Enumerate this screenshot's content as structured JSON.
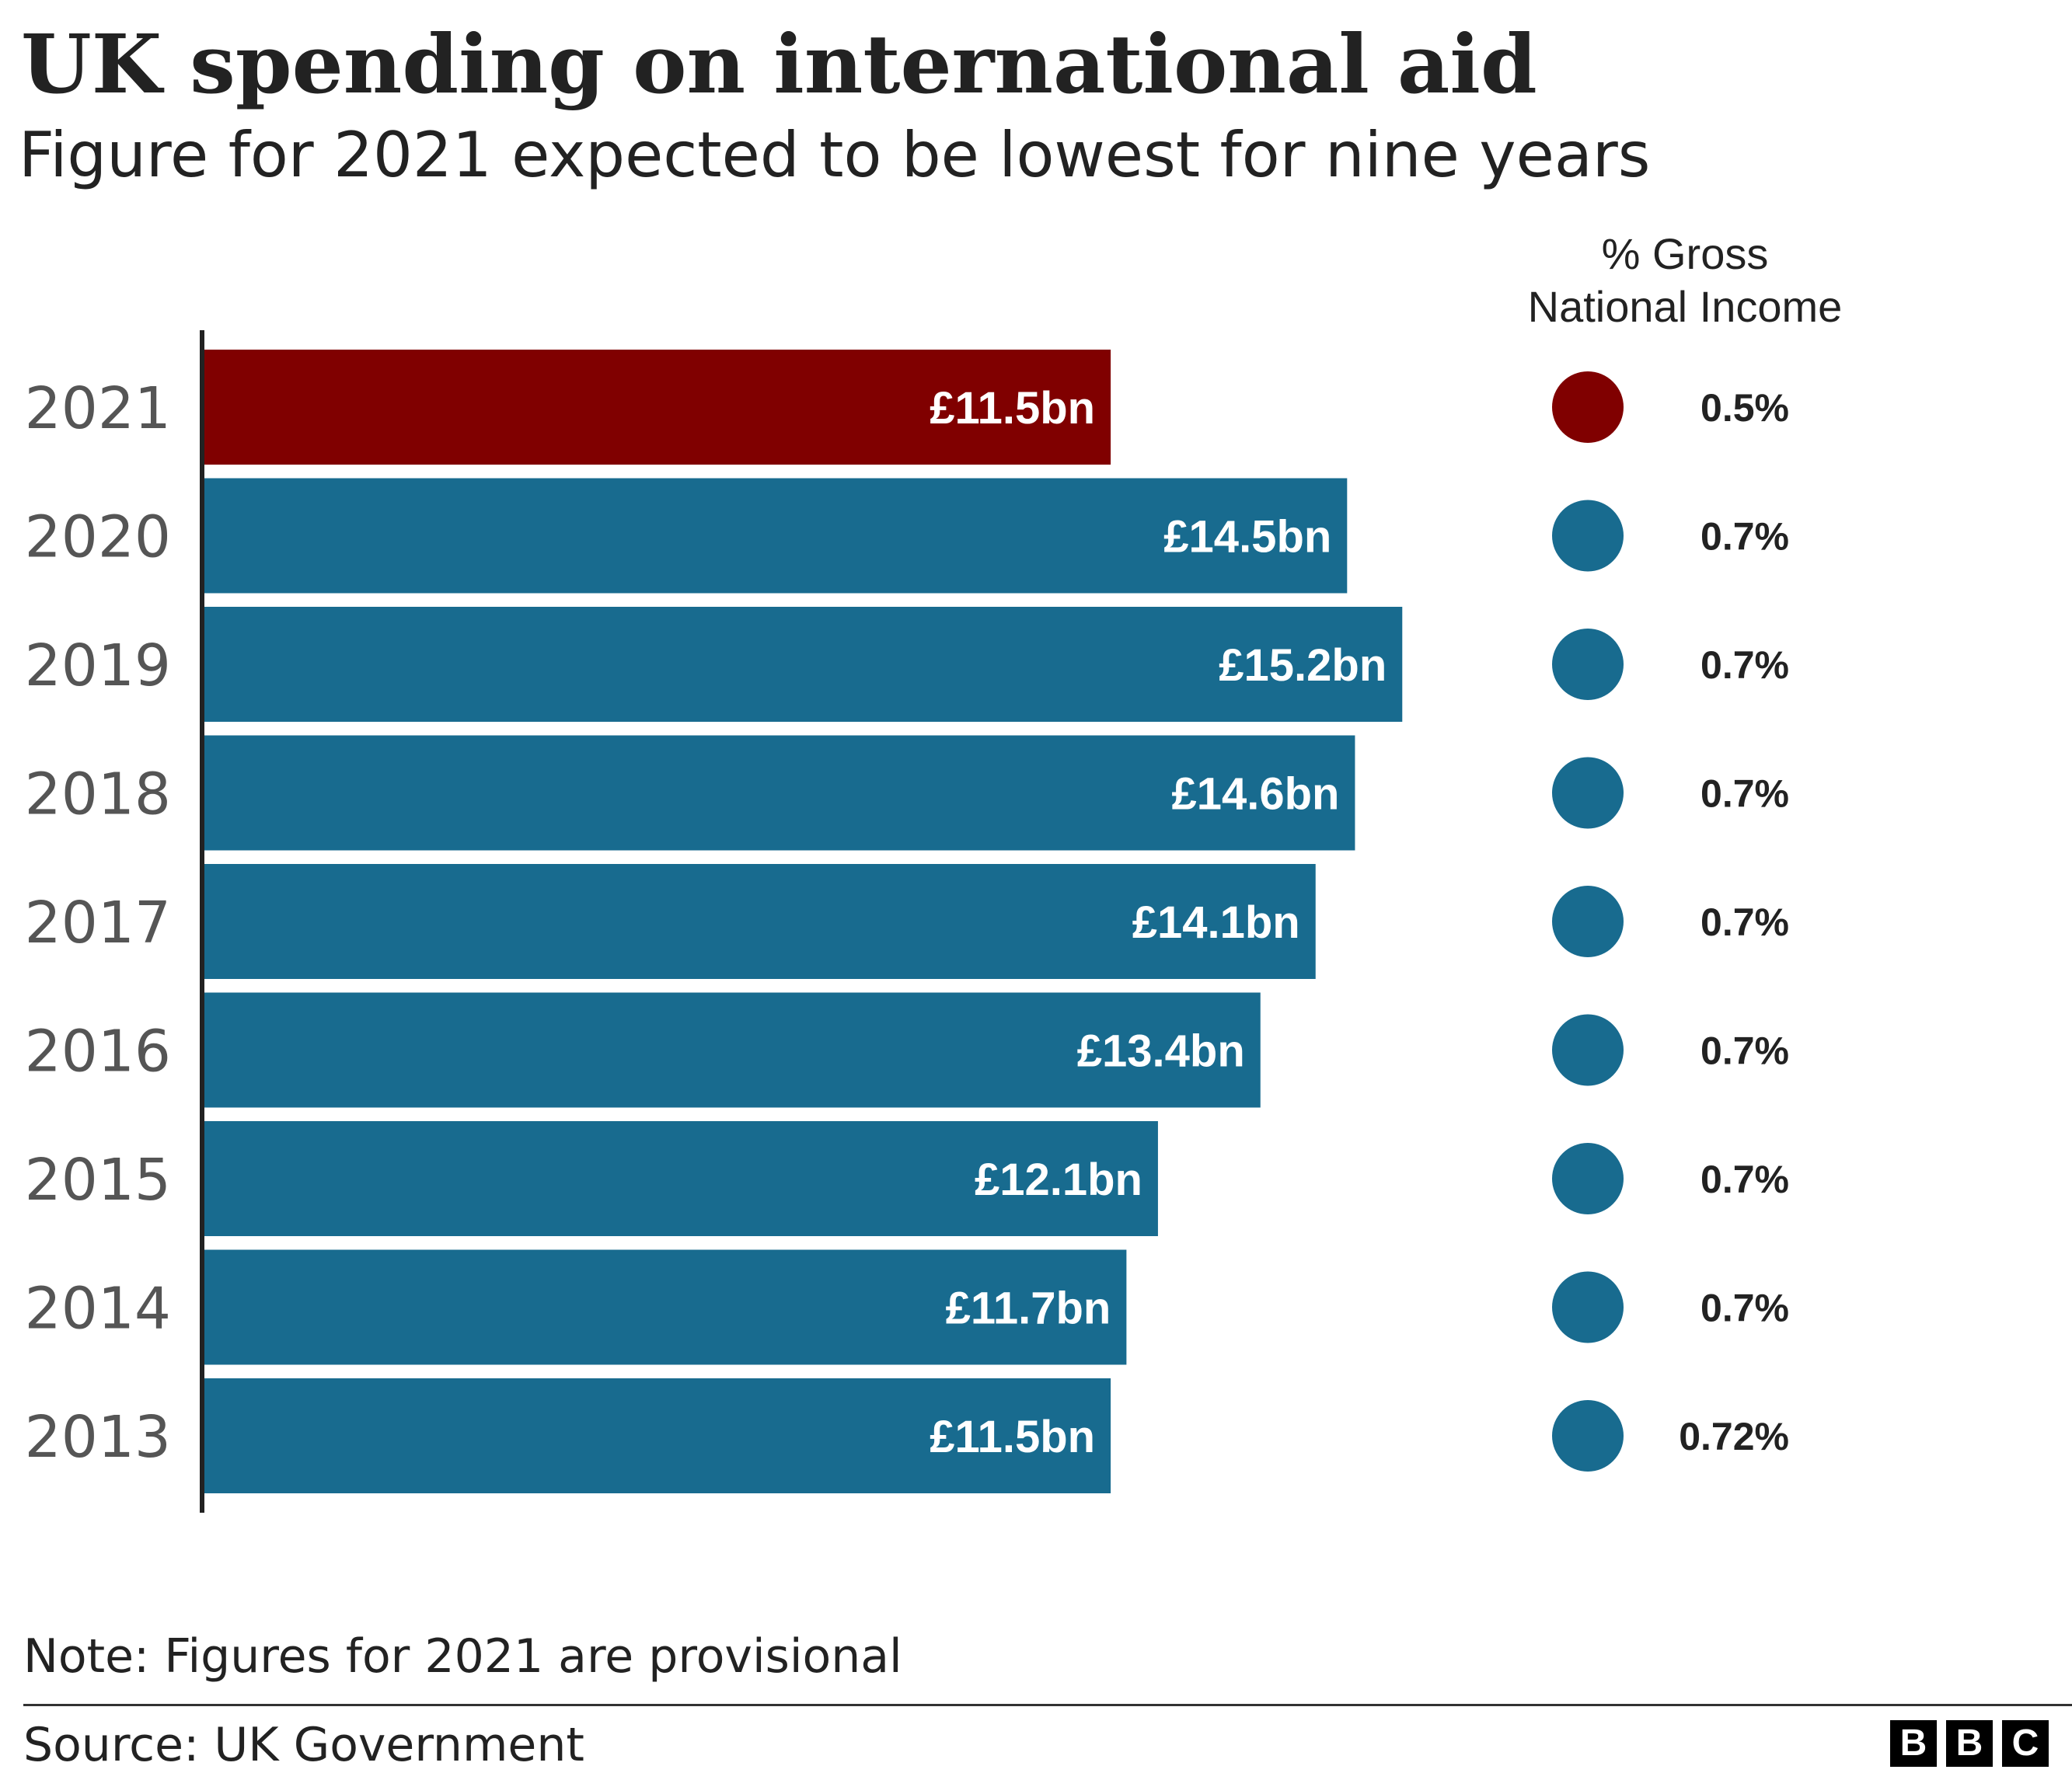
{
  "title": "UK spending on international aid",
  "subtitle": "Figure for 2021 expected to be lowest for nine years",
  "note": "Note: Figures for 2021 are provisional",
  "source": "Source: UK Government",
  "logo_letters": [
    "B",
    "B",
    "C"
  ],
  "colors": {
    "highlight": "#800000",
    "bar": "#186b8f",
    "axis": "#222222"
  },
  "chart_data": {
    "type": "bar",
    "orientation": "horizontal",
    "title": "UK spending on international aid",
    "subtitle": "Figure for 2021 expected to be lowest for nine years",
    "categories": [
      "2021",
      "2020",
      "2019",
      "2018",
      "2017",
      "2016",
      "2015",
      "2014",
      "2013"
    ],
    "values": [
      11.5,
      14.5,
      15.2,
      14.6,
      14.1,
      13.4,
      12.1,
      11.7,
      11.5
    ],
    "value_labels": [
      "£11.5bn",
      "£14.5bn",
      "£15.2bn",
      "£14.6bn",
      "£14.1bn",
      "£13.4bn",
      "£12.1bn",
      "£11.7bn",
      "£11.5bn"
    ],
    "unit": "£bn",
    "xlim": [
      0,
      16
    ],
    "highlight_index": 0,
    "gni_header": [
      "% Gross",
      "National Income"
    ],
    "gni_values": [
      0.5,
      0.7,
      0.7,
      0.7,
      0.7,
      0.7,
      0.7,
      0.7,
      0.72
    ],
    "gni_labels": [
      "0.5%",
      "0.7%",
      "0.7%",
      "0.7%",
      "0.7%",
      "0.7%",
      "0.7%",
      "0.7%",
      "0.72%"
    ],
    "grid": false,
    "legend": "none"
  }
}
